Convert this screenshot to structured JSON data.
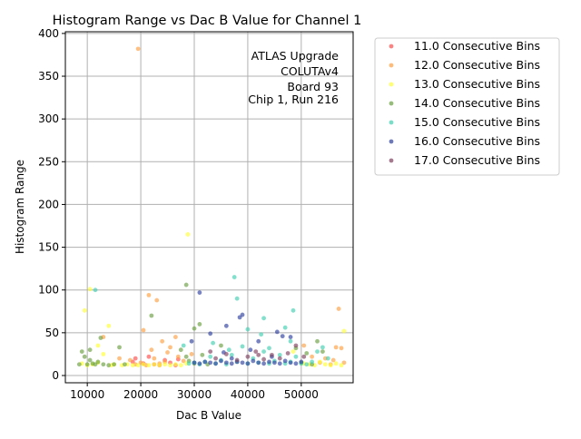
{
  "chart_data": {
    "type": "scatter",
    "title": "Histogram Range vs Dac B Value for Channel 1",
    "xlabel": "Dac B Value",
    "ylabel": "Histogram Range",
    "xlim": [
      5900,
      59700
    ],
    "ylim": [
      -8.5,
      402
    ],
    "xticks": [
      10000,
      20000,
      30000,
      40000,
      50000
    ],
    "xtick_labels": [
      "10000",
      "20000",
      "30000",
      "40000",
      "50000"
    ],
    "yticks": [
      0,
      50,
      100,
      150,
      200,
      250,
      300,
      350,
      400
    ],
    "ytick_labels": [
      "0",
      "50",
      "100",
      "150",
      "200",
      "250",
      "300",
      "350",
      "400"
    ],
    "grid": true,
    "legend_position": "outside-right",
    "annotation": [
      "ATLAS Upgrade",
      "COLUTAv4",
      "Board 93",
      "Chip 1, Run 216"
    ],
    "series": [
      {
        "name": "11.0 Consecutive Bins",
        "color": "#ff4d4d",
        "points": [
          [
            18500,
            16
          ],
          [
            19000,
            20
          ],
          [
            20500,
            14
          ],
          [
            21500,
            22
          ],
          [
            22500,
            13
          ],
          [
            24500,
            18
          ],
          [
            25500,
            15
          ],
          [
            26500,
            12
          ],
          [
            27000,
            19
          ],
          [
            23500,
            12
          ]
        ]
      },
      {
        "name": "12.0 Consecutive Bins",
        "color": "#ffa040",
        "points": [
          [
            19500,
            382
          ],
          [
            21500,
            94
          ],
          [
            23000,
            88
          ],
          [
            26500,
            45
          ],
          [
            20500,
            53
          ],
          [
            57000,
            78
          ],
          [
            24000,
            40
          ],
          [
            22000,
            30
          ],
          [
            25500,
            33
          ],
          [
            18000,
            18
          ],
          [
            19000,
            13
          ],
          [
            20000,
            15
          ],
          [
            21000,
            12
          ],
          [
            22500,
            20
          ],
          [
            23500,
            14
          ],
          [
            24500,
            16
          ],
          [
            25000,
            27
          ],
          [
            27000,
            22
          ],
          [
            28000,
            17
          ],
          [
            16000,
            20
          ],
          [
            13000,
            45
          ],
          [
            53500,
            15
          ],
          [
            54500,
            20
          ],
          [
            55500,
            13
          ],
          [
            56500,
            33
          ],
          [
            57500,
            32
          ],
          [
            58000,
            15
          ],
          [
            56000,
            18
          ],
          [
            52000,
            22
          ],
          [
            50500,
            35
          ],
          [
            29500,
            25
          ]
        ]
      },
      {
        "name": "13.0 Consecutive Bins",
        "color": "#ffff33",
        "points": [
          [
            28800,
            165
          ],
          [
            9500,
            76
          ],
          [
            10500,
            101
          ],
          [
            14000,
            58
          ],
          [
            58000,
            52
          ],
          [
            9000,
            14
          ],
          [
            10000,
            12
          ],
          [
            11000,
            13
          ],
          [
            12000,
            15
          ],
          [
            13000,
            25
          ],
          [
            14500,
            12
          ],
          [
            15000,
            13
          ],
          [
            16500,
            12
          ],
          [
            17500,
            13
          ],
          [
            18500,
            12
          ],
          [
            19500,
            12
          ],
          [
            20500,
            13
          ],
          [
            21500,
            12
          ],
          [
            22500,
            13
          ],
          [
            23500,
            12
          ],
          [
            24500,
            13
          ],
          [
            25500,
            12
          ],
          [
            26500,
            13
          ],
          [
            27500,
            12
          ],
          [
            28500,
            14
          ],
          [
            50500,
            14
          ],
          [
            51500,
            13
          ],
          [
            52500,
            12
          ],
          [
            53500,
            16
          ],
          [
            54500,
            13
          ],
          [
            55500,
            12
          ],
          [
            56500,
            14
          ],
          [
            57500,
            12
          ],
          [
            12000,
            35
          ],
          [
            48500,
            28
          ]
        ]
      },
      {
        "name": "14.0 Consecutive Bins",
        "color": "#6aa040",
        "points": [
          [
            28500,
            106
          ],
          [
            22000,
            70
          ],
          [
            31000,
            60
          ],
          [
            30000,
            55
          ],
          [
            12500,
            44
          ],
          [
            8500,
            13
          ],
          [
            9000,
            28
          ],
          [
            9500,
            22
          ],
          [
            10000,
            13
          ],
          [
            10500,
            30
          ],
          [
            11000,
            14
          ],
          [
            11500,
            13
          ],
          [
            12000,
            16
          ],
          [
            13000,
            13
          ],
          [
            14000,
            12
          ],
          [
            15000,
            13
          ],
          [
            16000,
            33
          ],
          [
            17000,
            13
          ],
          [
            27500,
            30
          ],
          [
            28500,
            22
          ],
          [
            29000,
            17
          ],
          [
            30000,
            14
          ],
          [
            31500,
            24
          ],
          [
            32500,
            13
          ],
          [
            49000,
            32
          ],
          [
            50000,
            15
          ],
          [
            51000,
            26
          ],
          [
            52000,
            13
          ],
          [
            53000,
            40
          ],
          [
            54000,
            28
          ],
          [
            35000,
            35
          ],
          [
            10500,
            18
          ]
        ]
      },
      {
        "name": "15.0 Consecutive Bins",
        "color": "#40d0b0",
        "points": [
          [
            37500,
            115
          ],
          [
            11500,
            100
          ],
          [
            38000,
            90
          ],
          [
            43000,
            67
          ],
          [
            48500,
            76
          ],
          [
            47000,
            56
          ],
          [
            40000,
            54
          ],
          [
            29000,
            14
          ],
          [
            30000,
            15
          ],
          [
            31000,
            13
          ],
          [
            32000,
            16
          ],
          [
            33000,
            22
          ],
          [
            34000,
            14
          ],
          [
            35000,
            18
          ],
          [
            36000,
            13
          ],
          [
            37000,
            24
          ],
          [
            38000,
            16
          ],
          [
            39000,
            34
          ],
          [
            40000,
            14
          ],
          [
            41000,
            20
          ],
          [
            42000,
            15
          ],
          [
            43000,
            28
          ],
          [
            44000,
            14
          ],
          [
            45000,
            17
          ],
          [
            46000,
            24
          ],
          [
            47000,
            14
          ],
          [
            48000,
            16
          ],
          [
            49000,
            22
          ],
          [
            50000,
            14
          ],
          [
            51000,
            13
          ],
          [
            52000,
            16
          ],
          [
            53000,
            28
          ],
          [
            54000,
            33
          ],
          [
            55000,
            20
          ],
          [
            33500,
            38
          ],
          [
            42500,
            48
          ],
          [
            48000,
            40
          ],
          [
            28000,
            35
          ],
          [
            36500,
            30
          ],
          [
            44000,
            32
          ]
        ]
      },
      {
        "name": "16.0 Consecutive Bins",
        "color": "#3040a0",
        "points": [
          [
            31000,
            97
          ],
          [
            39000,
            71
          ],
          [
            38500,
            68
          ],
          [
            36000,
            58
          ],
          [
            33000,
            49
          ],
          [
            45500,
            51
          ],
          [
            48000,
            45
          ],
          [
            30000,
            15
          ],
          [
            31000,
            14
          ],
          [
            32000,
            16
          ],
          [
            33000,
            15
          ],
          [
            34000,
            14
          ],
          [
            35000,
            17
          ],
          [
            36000,
            15
          ],
          [
            37000,
            14
          ],
          [
            38000,
            16
          ],
          [
            39000,
            15
          ],
          [
            40000,
            14
          ],
          [
            41000,
            17
          ],
          [
            42000,
            15
          ],
          [
            43000,
            14
          ],
          [
            44000,
            16
          ],
          [
            45000,
            15
          ],
          [
            46000,
            14
          ],
          [
            47000,
            17
          ],
          [
            48000,
            15
          ],
          [
            49000,
            14
          ],
          [
            50000,
            16
          ],
          [
            40500,
            30
          ],
          [
            35500,
            27
          ],
          [
            44500,
            22
          ],
          [
            46500,
            46
          ],
          [
            29500,
            40
          ],
          [
            37000,
            20
          ],
          [
            42000,
            40
          ]
        ]
      },
      {
        "name": "17.0 Consecutive Bins",
        "color": "#804060",
        "points": [
          [
            34000,
            20
          ],
          [
            36000,
            25
          ],
          [
            38000,
            18
          ],
          [
            40000,
            22
          ],
          [
            41500,
            28
          ],
          [
            43000,
            19
          ],
          [
            44500,
            24
          ],
          [
            46000,
            20
          ],
          [
            47500,
            26
          ],
          [
            49000,
            35
          ],
          [
            50500,
            22
          ],
          [
            33000,
            28
          ],
          [
            42000,
            24
          ]
        ]
      }
    ]
  }
}
